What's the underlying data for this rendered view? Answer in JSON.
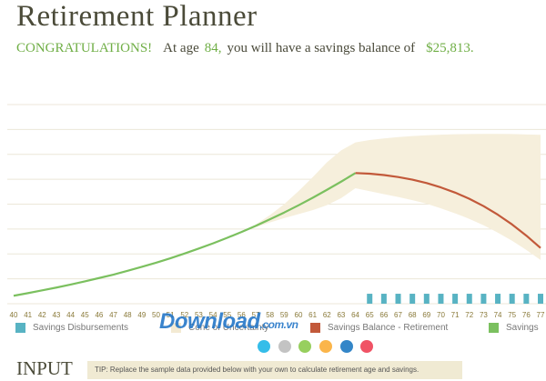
{
  "title": "Retirement Planner",
  "summary": {
    "congrats": "CONGRATULATIONS!",
    "at_age_label": "At age",
    "age": "84,",
    "middle_text": "you will have a savings balance of",
    "balance": "$25,813."
  },
  "chart_data": {
    "type": "area",
    "x": [
      40,
      41,
      42,
      43,
      44,
      45,
      46,
      47,
      48,
      49,
      50,
      51,
      52,
      53,
      54,
      55,
      56,
      57,
      58,
      59,
      60,
      61,
      62,
      63,
      64,
      65,
      66,
      67,
      68,
      69,
      70,
      71,
      72,
      73,
      74,
      75,
      76,
      77
    ],
    "x_tick_labels": [
      "40",
      "41",
      "42",
      "43",
      "44",
      "45",
      "46",
      "47",
      "48",
      "49",
      "50",
      "51",
      "52",
      "53",
      "54",
      "55",
      "56",
      "57",
      "58",
      "59",
      "60",
      "61",
      "62",
      "63",
      "64",
      "65",
      "66",
      "67",
      "68",
      "69",
      "70",
      "71",
      "72",
      "73",
      "74",
      "75",
      "76",
      "77"
    ],
    "ylim": [
      0,
      100
    ],
    "grid": true,
    "series": [
      {
        "name": "Savings",
        "color": "#7bc05f",
        "x": [
          40,
          41,
          42,
          43,
          44,
          45,
          46,
          47,
          48,
          49,
          50,
          51,
          52,
          53,
          54,
          55,
          56,
          57,
          58,
          59,
          60,
          61,
          62,
          63,
          64
        ],
        "values": [
          4.0,
          5.3,
          6.7,
          8.1,
          9.6,
          11.2,
          12.9,
          14.6,
          16.5,
          18.5,
          20.6,
          22.8,
          25.2,
          27.7,
          30.3,
          33.1,
          36.0,
          39.1,
          42.4,
          45.8,
          49.4,
          53.2,
          57.2,
          61.3,
          65.6
        ]
      },
      {
        "name": "Savings Balance - Retirement",
        "color": "#c2593a",
        "x": [
          64,
          65,
          66,
          67,
          68,
          69,
          70,
          71,
          72,
          73,
          74,
          75,
          76,
          77
        ],
        "values": [
          65.6,
          65.3,
          64.6,
          63.6,
          62.3,
          60.6,
          58.4,
          55.8,
          52.7,
          49.0,
          44.7,
          39.8,
          34.2,
          28.0
        ]
      },
      {
        "name": "Cone of Uncertainty",
        "color": "#f6efdc",
        "x": [
          56,
          57,
          58,
          59,
          60,
          61,
          62,
          63,
          64,
          65,
          66,
          67,
          68,
          69,
          70,
          71,
          72,
          73,
          74,
          75,
          76,
          77
        ],
        "upper": [
          36.0,
          39.8,
          44.5,
          50.0,
          56.5,
          63.5,
          71.0,
          77.0,
          81.0,
          82.2,
          83.0,
          83.7,
          84.2,
          84.6,
          84.9,
          85.1,
          85.2,
          85.3,
          85.3,
          85.2,
          85.0,
          84.8
        ],
        "lower": [
          36.0,
          38.4,
          40.8,
          43.0,
          45.0,
          47.0,
          49.5,
          53.0,
          58.0,
          56.5,
          55.0,
          53.6,
          52.0,
          50.2,
          47.9,
          45.4,
          42.6,
          39.4,
          35.7,
          31.6,
          27.0,
          22.0
        ]
      },
      {
        "name": "Savings Disbursements",
        "color": "#58b3c3",
        "x": [
          65,
          66,
          67,
          68,
          69,
          70,
          71,
          72,
          73,
          74,
          75,
          76,
          77
        ],
        "values": [
          5,
          5,
          5,
          5,
          5,
          5,
          5,
          5,
          5,
          5,
          5,
          5,
          5
        ]
      }
    ],
    "legend": [
      {
        "name": "Savings Disbursements",
        "color": "#58b3c3"
      },
      {
        "name": "Cone of Uncertainty",
        "color": "#f3ead3"
      },
      {
        "name": "Savings Balance - Retirement",
        "color": "#c2593a"
      },
      {
        "name": "Savings",
        "color": "#7bc05f"
      }
    ]
  },
  "theme_dots": [
    {
      "name": "blue-theme",
      "color": "#35bde9"
    },
    {
      "name": "gray-theme",
      "color": "#c3c3c3"
    },
    {
      "name": "green-theme",
      "color": "#97cf5e"
    },
    {
      "name": "orange-theme",
      "color": "#fbb54a"
    },
    {
      "name": "darkblue-theme",
      "color": "#3486c8"
    },
    {
      "name": "red-theme",
      "color": "#f05365"
    }
  ],
  "watermark": {
    "main": "Download",
    "tld": ".com.vn"
  },
  "input": {
    "heading": "INPUT",
    "tip": "TIP: Replace the sample data provided below with your own to calculate retirement age and savings."
  }
}
